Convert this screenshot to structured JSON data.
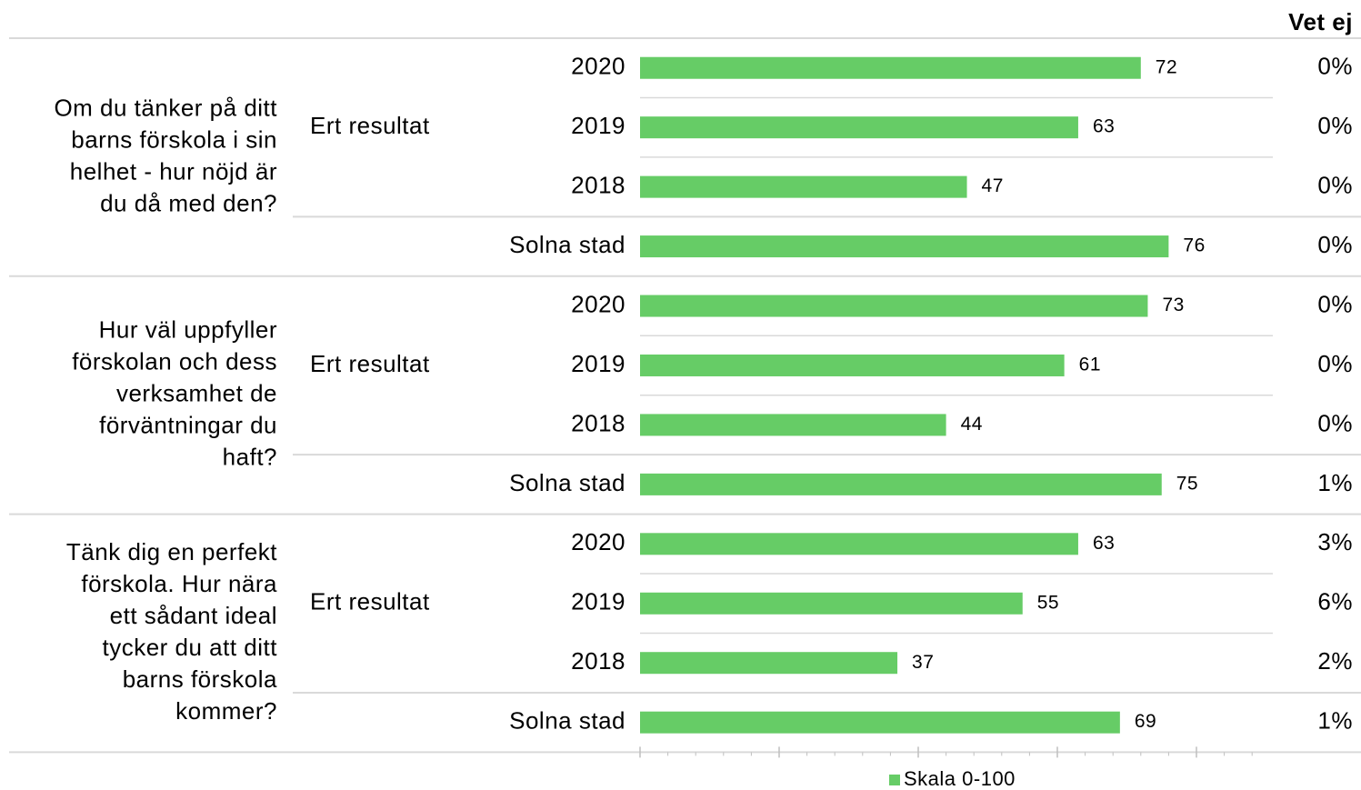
{
  "chart_data": {
    "type": "bar",
    "column_header": "Vet ej",
    "legend_label": "Skala 0-100",
    "color": "#66cc66",
    "xlim": [
      0,
      100
    ],
    "xticks": [
      0,
      20,
      40,
      60,
      80
    ],
    "xticks_minor": [
      4,
      8,
      12,
      16,
      24,
      28,
      32,
      36,
      44,
      48,
      52,
      56,
      64,
      68,
      72,
      76,
      84,
      88
    ],
    "groups": [
      {
        "question_lines": [
          "Om du tänker på ditt",
          "barns förskola i sin",
          "helhet - hur nöjd är",
          "du då med den?"
        ],
        "subgroup": "Ert resultat",
        "categories": [
          "2020",
          "2019",
          "2018",
          "Solna stad"
        ],
        "values": [
          72,
          63,
          47,
          76
        ],
        "vet_ej": [
          0,
          0,
          0,
          0
        ],
        "vet_ej_labels": [
          "0%",
          "0%",
          "0%",
          "0%"
        ]
      },
      {
        "question_lines": [
          "Hur väl uppfyller",
          "förskolan och dess",
          "verksamhet de",
          "förväntningar du",
          "haft?"
        ],
        "subgroup": "Ert resultat",
        "categories": [
          "2020",
          "2019",
          "2018",
          "Solna stad"
        ],
        "values": [
          73,
          61,
          44,
          75
        ],
        "vet_ej": [
          0,
          0,
          0,
          1
        ],
        "vet_ej_labels": [
          "0%",
          "0%",
          "0%",
          "1%"
        ]
      },
      {
        "question_lines": [
          "Tänk dig en perfekt",
          "förskola. Hur nära",
          "ett sådant ideal",
          "tycker du att ditt",
          "barns förskola",
          "kommer?"
        ],
        "subgroup": "Ert resultat",
        "categories": [
          "2020",
          "2019",
          "2018",
          "Solna stad"
        ],
        "values": [
          63,
          55,
          37,
          69
        ],
        "vet_ej": [
          3,
          6,
          2,
          1
        ],
        "vet_ej_labels": [
          "3%",
          "6%",
          "2%",
          "1%"
        ]
      }
    ]
  }
}
